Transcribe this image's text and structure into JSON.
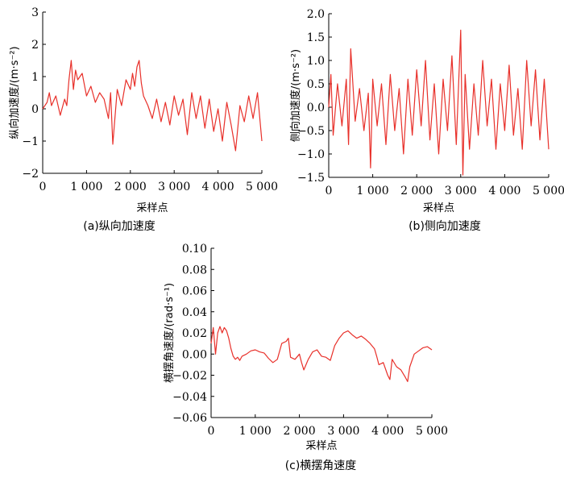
{
  "chart_data": [
    {
      "type": "line",
      "id": "a",
      "caption": "(a)纵向加速度",
      "xlabel": "采样点",
      "ylabel": "纵向加速度/(m·s⁻²)",
      "xlim": [
        0,
        5000
      ],
      "ylim": [
        -2,
        3
      ],
      "xticks": [
        0,
        1000,
        2000,
        3000,
        4000,
        5000
      ],
      "xtick_labels": [
        "0",
        "1 000",
        "2 000",
        "3 000",
        "4 000",
        "5 000"
      ],
      "yticks": [
        -2,
        -1,
        0,
        1,
        2,
        3
      ],
      "ytick_labels": [
        "−2",
        "−1",
        "0",
        "1",
        "2",
        "3"
      ],
      "line_color": "#e8302a",
      "series": [
        {
          "x": [
            0,
            100,
            150,
            200,
            300,
            400,
            500,
            550,
            600,
            650,
            700,
            750,
            800,
            900,
            1000,
            1100,
            1200,
            1300,
            1400,
            1500,
            1550,
            1600,
            1700,
            1800,
            1900,
            2000,
            2050,
            2100,
            2150,
            2200,
            2250,
            2300,
            2400,
            2500,
            2600,
            2700,
            2800,
            2900,
            3000,
            3100,
            3200,
            3300,
            3400,
            3500,
            3600,
            3700,
            3800,
            3900,
            4000,
            4100,
            4200,
            4300,
            4400,
            4500,
            4600,
            4700,
            4800,
            4900,
            5000
          ],
          "y": [
            0.0,
            0.2,
            0.5,
            0.1,
            0.4,
            -0.2,
            0.3,
            0.1,
            0.9,
            1.5,
            0.6,
            1.2,
            0.9,
            1.1,
            0.4,
            0.7,
            0.2,
            0.5,
            0.3,
            -0.3,
            0.5,
            -1.1,
            0.6,
            0.1,
            0.9,
            0.6,
            1.1,
            0.7,
            1.3,
            1.5,
            0.8,
            0.4,
            0.1,
            -0.3,
            0.3,
            -0.4,
            0.2,
            -0.5,
            0.4,
            -0.2,
            0.3,
            -0.8,
            0.5,
            -0.3,
            0.4,
            -0.6,
            0.3,
            -0.7,
            0.0,
            -1.0,
            0.2,
            -0.5,
            -1.3,
            0.1,
            -0.4,
            0.4,
            -0.3,
            0.5,
            -1.0
          ]
        }
      ]
    },
    {
      "type": "line",
      "id": "b",
      "caption": "(b)侧向加速度",
      "xlabel": "采样点",
      "ylabel": "侧向加速度/(m·s⁻²)",
      "xlim": [
        0,
        5000
      ],
      "ylim": [
        -1.5,
        2.0
      ],
      "xticks": [
        0,
        1000,
        2000,
        3000,
        4000,
        5000
      ],
      "xtick_labels": [
        "0",
        "1 000",
        "2 000",
        "3 000",
        "4 000",
        "5 000"
      ],
      "yticks": [
        -1.5,
        -1.0,
        -0.5,
        0.0,
        0.5,
        1.0,
        1.5,
        2.0
      ],
      "ytick_labels": [
        "−1.5",
        "−1.0",
        "−0.5",
        "0.0",
        "0.5",
        "1.0",
        "1.5",
        "2.0"
      ],
      "line_color": "#e8302a",
      "series": [
        {
          "x": [
            0,
            50,
            100,
            200,
            300,
            400,
            450,
            500,
            600,
            700,
            800,
            900,
            950,
            1000,
            1100,
            1200,
            1300,
            1400,
            1500,
            1600,
            1700,
            1800,
            1900,
            2000,
            2100,
            2200,
            2300,
            2400,
            2500,
            2600,
            2700,
            2800,
            2900,
            3000,
            3050,
            3100,
            3200,
            3300,
            3400,
            3500,
            3600,
            3700,
            3800,
            3900,
            4000,
            4100,
            4200,
            4300,
            4400,
            4500,
            4600,
            4700,
            4800,
            4900,
            5000
          ],
          "y": [
            0.0,
            0.7,
            -0.6,
            0.5,
            -0.4,
            0.6,
            -0.8,
            1.25,
            -0.3,
            0.4,
            -0.5,
            0.3,
            -1.3,
            0.6,
            -0.4,
            0.5,
            -0.8,
            0.7,
            -0.5,
            0.4,
            -1.0,
            0.6,
            -0.6,
            0.8,
            -0.4,
            1.0,
            -0.7,
            0.5,
            -1.0,
            0.6,
            -0.5,
            1.1,
            -0.8,
            1.65,
            -1.45,
            0.7,
            -0.9,
            0.5,
            -0.6,
            1.0,
            -0.4,
            0.6,
            -0.9,
            0.5,
            -0.5,
            0.9,
            -0.6,
            0.4,
            -0.9,
            1.0,
            -0.4,
            0.8,
            -0.7,
            0.6,
            -0.9
          ]
        }
      ]
    },
    {
      "type": "line",
      "id": "c",
      "caption": "(c)横摆角速度",
      "xlabel": "采样点",
      "ylabel": "横摆角速度/(rad·s⁻¹)",
      "xlim": [
        0,
        5000
      ],
      "ylim": [
        -0.06,
        0.1
      ],
      "xticks": [
        0,
        1000,
        2000,
        3000,
        4000,
        5000
      ],
      "xtick_labels": [
        "0",
        "1 000",
        "2 000",
        "3 000",
        "4 000",
        "5 000"
      ],
      "yticks": [
        -0.06,
        -0.04,
        -0.02,
        0.0,
        0.02,
        0.04,
        0.06,
        0.08,
        0.1
      ],
      "ytick_labels": [
        "−0.06",
        "−0.04",
        "−0.02",
        "0.00",
        "0.02",
        "0.04",
        "0.06",
        "0.08",
        "0.10"
      ],
      "line_color": "#e8302a",
      "series": [
        {
          "x": [
            0,
            50,
            100,
            150,
            200,
            250,
            300,
            350,
            400,
            450,
            500,
            550,
            600,
            650,
            700,
            800,
            900,
            1000,
            1100,
            1200,
            1300,
            1400,
            1500,
            1600,
            1700,
            1750,
            1800,
            1900,
            2000,
            2050,
            2100,
            2200,
            2300,
            2400,
            2500,
            2600,
            2700,
            2800,
            2900,
            3000,
            3100,
            3200,
            3300,
            3400,
            3500,
            3600,
            3700,
            3750,
            3800,
            3900,
            4000,
            4050,
            4100,
            4200,
            4300,
            4400,
            4450,
            4500,
            4600,
            4700,
            4800,
            4900,
            5000
          ],
          "y": [
            0.01,
            0.025,
            0.0,
            0.02,
            0.026,
            0.02,
            0.025,
            0.022,
            0.015,
            0.005,
            -0.002,
            -0.005,
            -0.003,
            -0.006,
            -0.002,
            0.0,
            0.003,
            0.004,
            0.002,
            0.001,
            -0.004,
            -0.008,
            -0.005,
            0.01,
            0.012,
            0.015,
            -0.003,
            -0.005,
            0.0,
            -0.008,
            -0.015,
            -0.005,
            0.002,
            0.004,
            -0.002,
            -0.003,
            -0.006,
            0.008,
            0.015,
            0.02,
            0.022,
            0.018,
            0.015,
            0.017,
            0.014,
            0.01,
            0.005,
            -0.002,
            -0.01,
            -0.008,
            -0.02,
            -0.024,
            -0.005,
            -0.012,
            -0.015,
            -0.022,
            -0.026,
            -0.012,
            0.0,
            0.003,
            0.006,
            0.007,
            0.004
          ]
        }
      ]
    }
  ]
}
